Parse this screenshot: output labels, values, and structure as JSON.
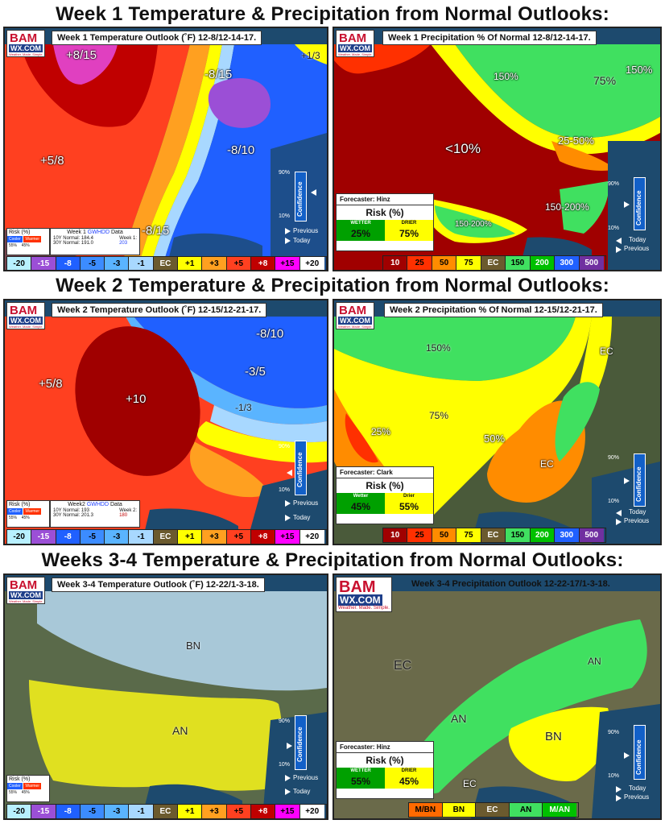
{
  "headings": {
    "week1": "Week 1 Temperature & Precipitation from Normal Outlooks:",
    "week2": "Week 2 Temperature & Precipitation from Normal Outlooks:",
    "week34": "Weeks 3-4 Temperature & Precipitation from Normal Outlooks:"
  },
  "logo": {
    "top": "BAM",
    "middle": "WX.COM",
    "tagline": "Weather. Made. Simple."
  },
  "confidence": {
    "label": "Confidence",
    "high": "90%",
    "low": "10%",
    "today": "Today",
    "previous": "Previous"
  },
  "temp_legend": [
    "-20",
    "-15",
    "-8",
    "-5",
    "-3",
    "-1",
    "EC",
    "+1",
    "+3",
    "+5",
    "+8",
    "+15",
    "+20"
  ],
  "temp_legend_colors": [
    "#b8f0ff",
    "#9b4fd6",
    "#2060ff",
    "#3c8cff",
    "#5ab4ff",
    "#a8d8ff",
    "#6b5a2e",
    "#ffff00",
    "#ffa020",
    "#ff4020",
    "#c00000",
    "#ff00ff",
    "#ffffff"
  ],
  "prec_legend": [
    "10",
    "25",
    "50",
    "75",
    "EC",
    "150",
    "200",
    "300",
    "500"
  ],
  "prec_legend_colors": [
    "#a00000",
    "#ff3000",
    "#ff8c00",
    "#ffff00",
    "#6b5a2e",
    "#40e060",
    "#00c000",
    "#2060ff",
    "#7030a0"
  ],
  "week34_prec_legend": [
    "M/BN",
    "BN",
    "EC",
    "AN",
    "M/AN"
  ],
  "week34_prec_legend_colors": [
    "#ff6a00",
    "#ffff00",
    "#6b5a2e",
    "#40e060",
    "#00c000"
  ],
  "temp_risk": {
    "title": "Risk (%)",
    "cooler": "Cooler",
    "warmer": "Warmer",
    "cooler_value": "55%",
    "warmer_value": "45%"
  },
  "panels": {
    "w1_temp": {
      "title": "Week 1 Temperature Outlook (˚F) 12-8/12-14-17.",
      "labels": [
        "+8/15",
        "-8/15",
        "+1/3",
        "+5/8",
        "-8/10",
        "-8/15"
      ],
      "gwhdd": {
        "title_pre": "Week 1",
        "title_link": "GWHDD",
        "title_post": "Data",
        "n10": "10Y Normal: 184.4",
        "n30": "30Y Normal: 191.0",
        "week_label": "Week 1:",
        "week_value": "203"
      }
    },
    "w1_prec": {
      "title": "Week 1 Precipitation % Of Normal 12-8/12-14-17.",
      "labels": [
        "150%",
        "75%",
        "150%",
        "<10%",
        "25-50%",
        "150-200%",
        "150-200%"
      ],
      "forecaster": "Forecaster: Hinz",
      "risk_title": "Risk (%)",
      "wetter": "WETTER",
      "drier": "DRIER",
      "wetter_value": "25%",
      "drier_value": "75%"
    },
    "w2_temp": {
      "title": "Week 2 Temperature Outlook (˚F) 12-15/12-21-17.",
      "labels": [
        "+5/8",
        "+10",
        "-8/10",
        "-3/5",
        "-1/3"
      ],
      "gwhdd": {
        "title_pre": "Week2",
        "title_link": "GWHDD",
        "title_post": "Data",
        "n10": "10Y Normal: 193",
        "n30": "30Y Normal: 201.3",
        "week_label": "Week 2:",
        "week_value": "180"
      }
    },
    "w2_prec": {
      "title": "Week 2 Precipitation % Of Normal 12-15/12-21-17.",
      "labels": [
        "150%",
        "EC",
        "75%",
        "25%",
        "50%",
        "EC"
      ],
      "forecaster": "Forecaster: Clark",
      "risk_title": "Risk (%)",
      "wetter": "Wetter",
      "drier": "Drier",
      "wetter_value": "45%",
      "drier_value": "55%"
    },
    "w34_temp": {
      "title": "Week 3-4 Temperature Outlook (˚F) 12-22/1-3-18.",
      "labels": [
        "BN",
        "AN"
      ]
    },
    "w34_prec": {
      "title": "Week 3-4 Precipitation Outlook 12-22-17/1-3-18.",
      "labels": [
        "EC",
        "AN",
        "AN",
        "BN",
        "EC"
      ],
      "forecaster": "Forecaster: Hinz",
      "risk_title": "Risk (%)",
      "wetter": "WETTER",
      "drier": "DRIER",
      "wetter_value": "55%",
      "drier_value": "45%"
    }
  }
}
